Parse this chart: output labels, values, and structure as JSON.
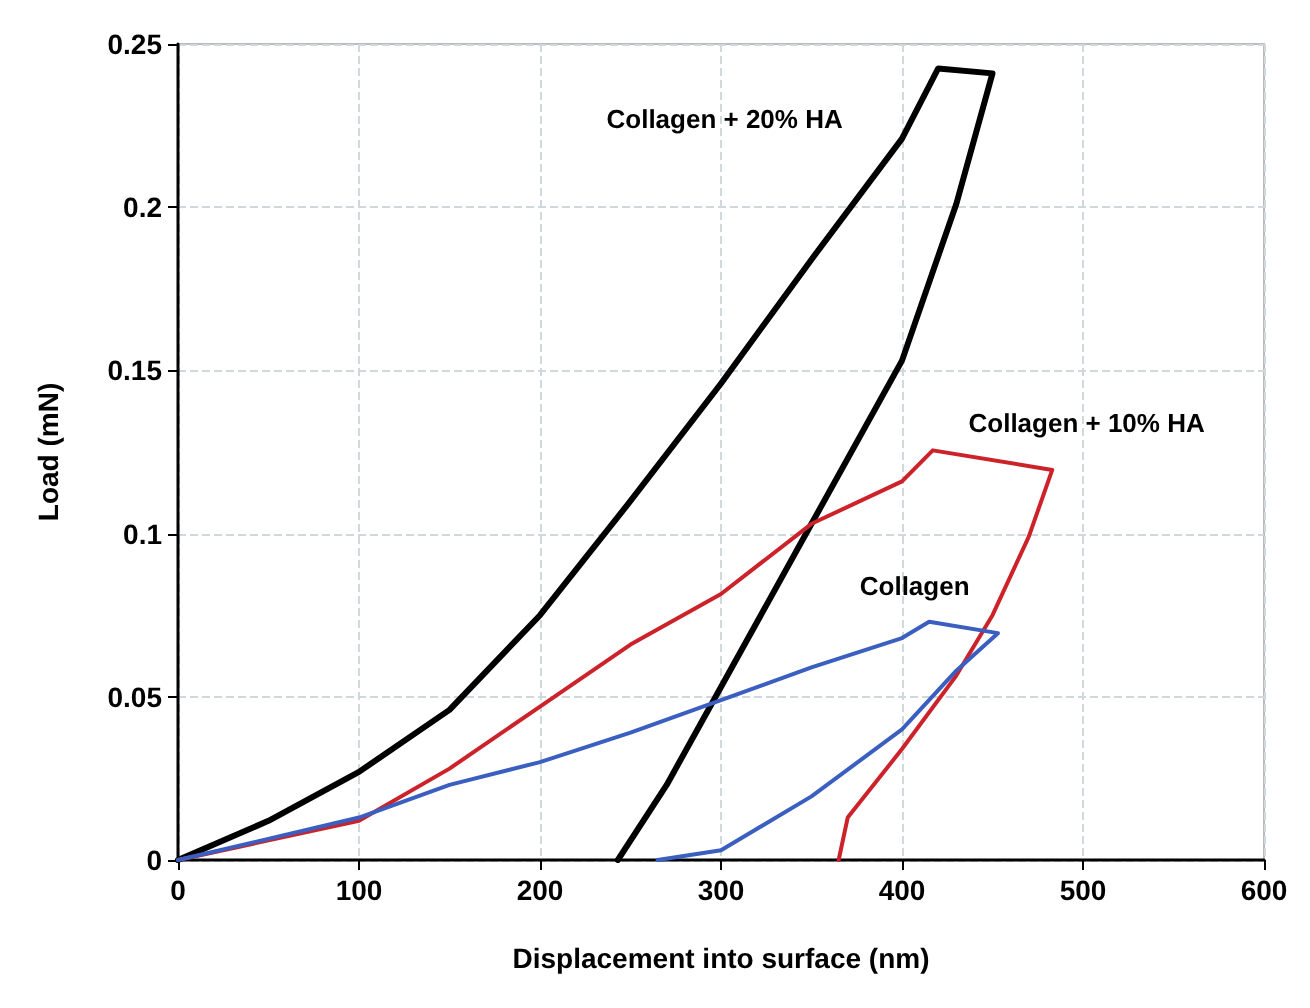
{
  "chart_data": {
    "type": "line",
    "xlabel": "Displacement into surface (nm)",
    "ylabel": "Load (mN)",
    "xlim": [
      0,
      600
    ],
    "xticks": [
      0,
      100,
      200,
      300,
      400,
      500,
      600
    ],
    "ylim": [
      0,
      0.25
    ],
    "yticks": [
      0,
      0.05,
      0.1,
      0.15,
      0.2,
      0.25
    ],
    "grid": true,
    "legend": false,
    "marker": "none",
    "line_style": "solid",
    "series": [
      {
        "name": "Collagen + 20% HA",
        "color": "#000000",
        "x": [
          0,
          50,
          100,
          150,
          200,
          250,
          300,
          350,
          400,
          420,
          450,
          430,
          400,
          350,
          300,
          270,
          243
        ],
        "values": [
          0,
          0.012,
          0.027,
          0.046,
          0.075,
          0.11,
          0.146,
          0.184,
          0.221,
          0.2425,
          0.241,
          0.201,
          0.153,
          0.103,
          0.053,
          0.023,
          0
        ]
      },
      {
        "name": "Collagen + 10% HA",
        "color": "#cc2229",
        "x": [
          0,
          50,
          100,
          150,
          200,
          250,
          300,
          350,
          400,
          417,
          483,
          470,
          450,
          430,
          400,
          370,
          365
        ],
        "values": [
          0,
          0.006,
          0.012,
          0.028,
          0.047,
          0.066,
          0.0815,
          0.103,
          0.116,
          0.1255,
          0.1195,
          0.099,
          0.075,
          0.0565,
          0.034,
          0.013,
          0
        ]
      },
      {
        "name": "Collagen",
        "color": "#3a5fc0",
        "x": [
          0,
          100,
          150,
          200,
          250,
          300,
          350,
          400,
          415,
          453,
          430,
          400,
          350,
          300,
          265
        ],
        "values": [
          0,
          0.013,
          0.023,
          0.03,
          0.039,
          0.049,
          0.059,
          0.068,
          0.073,
          0.0695,
          0.058,
          0.04,
          0.0195,
          0.003,
          0
        ]
      }
    ]
  }
}
